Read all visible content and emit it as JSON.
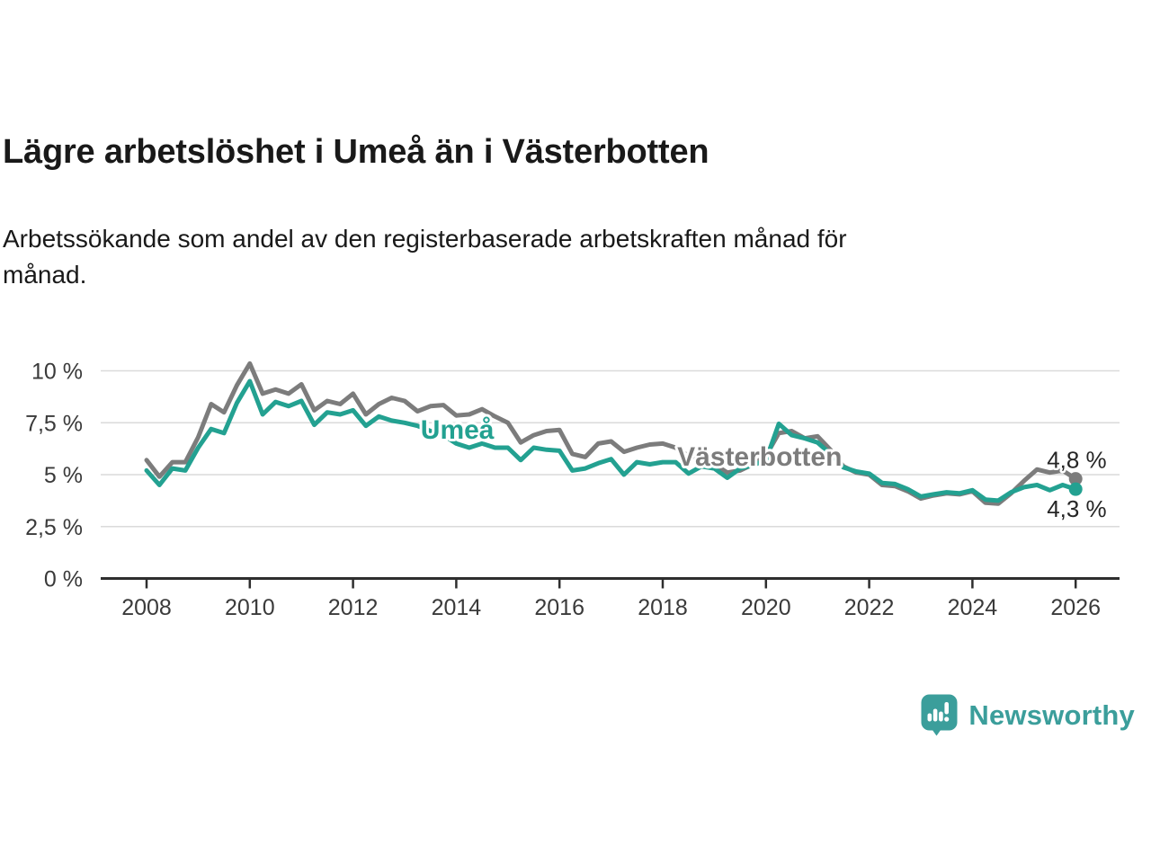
{
  "header": {
    "title": "Lägre arbetslöshet i Umeå än i Västerbotten",
    "subtitle_lines": [
      "Arbetssökande som andel av den registerbaserade arbetskraften månad för",
      "månad."
    ]
  },
  "footer": {
    "brand": "Newsworthy",
    "brand_color": "#3b9e9b",
    "logo_icon": "newsworthy-speech-bubble-bar-chart-icon"
  },
  "chart_data": {
    "type": "line",
    "title": "Lägre arbetslöshet i Umeå än i Västerbotten",
    "xlabel": "",
    "ylabel": "",
    "xlim": [
      2008,
      2026
    ],
    "ylim": [
      0,
      10.8
    ],
    "grid": true,
    "x_start": 2008,
    "x_step_years": 0.25,
    "axis_color": "#2e2e2e",
    "grid_color": "#dadada",
    "tick_label_color": "#3a3a3a",
    "value_label_color": "#252525",
    "x_ticks": [
      {
        "v": 2008,
        "label": "2008"
      },
      {
        "v": 2010,
        "label": "2010"
      },
      {
        "v": 2012,
        "label": "2012"
      },
      {
        "v": 2014,
        "label": "2014"
      },
      {
        "v": 2016,
        "label": "2016"
      },
      {
        "v": 2018,
        "label": "2018"
      },
      {
        "v": 2020,
        "label": "2020"
      },
      {
        "v": 2022,
        "label": "2022"
      },
      {
        "v": 2024,
        "label": "2024"
      },
      {
        "v": 2026,
        "label": "2026"
      }
    ],
    "y_ticks": [
      {
        "v": 0,
        "label": "0 %"
      },
      {
        "v": 2.5,
        "label": "2,5 %"
      },
      {
        "v": 5,
        "label": "5 %"
      },
      {
        "v": 7.5,
        "label": "7,5 %"
      },
      {
        "v": 10,
        "label": "10 %"
      }
    ],
    "series": [
      {
        "name": "Västerbotten",
        "color": "#7c7c7c",
        "end_label": "4,8 %",
        "end_label_position": "above",
        "label_anchor": {
          "x": 2018.28,
          "y": 5.43
        },
        "values": [
          5.7,
          4.9,
          5.6,
          5.6,
          6.8,
          8.4,
          8.0,
          9.3,
          10.35,
          8.9,
          9.1,
          8.9,
          9.35,
          8.1,
          8.55,
          8.4,
          8.9,
          7.9,
          8.4,
          8.7,
          8.55,
          8.05,
          8.3,
          8.35,
          7.85,
          7.9,
          8.15,
          7.8,
          7.5,
          6.55,
          6.9,
          7.1,
          7.15,
          6.0,
          5.85,
          6.5,
          6.6,
          6.1,
          6.3,
          6.45,
          6.5,
          6.3,
          5.9,
          5.8,
          5.5,
          5.1,
          5.2,
          5.5,
          5.9,
          7.0,
          7.1,
          6.75,
          6.85,
          6.2,
          5.4,
          5.1,
          5.0,
          4.5,
          4.45,
          4.2,
          3.85,
          4.0,
          4.1,
          4.05,
          4.2,
          3.65,
          3.6,
          4.1,
          4.7,
          5.25,
          5.1,
          5.2,
          4.8
        ]
      },
      {
        "name": "Umeå",
        "color": "#23a191",
        "end_label": "4,3 %",
        "end_label_position": "below",
        "label_anchor": {
          "x": 2013.31,
          "y": 6.73
        },
        "values": [
          5.2,
          4.5,
          5.3,
          5.2,
          6.3,
          7.2,
          7.0,
          8.45,
          9.5,
          7.9,
          8.5,
          8.3,
          8.55,
          7.4,
          8.0,
          7.9,
          8.1,
          7.35,
          7.8,
          7.6,
          7.5,
          7.35,
          7.1,
          6.9,
          6.5,
          6.3,
          6.5,
          6.3,
          6.3,
          5.7,
          6.3,
          6.2,
          6.15,
          5.2,
          5.3,
          5.55,
          5.75,
          5.0,
          5.6,
          5.5,
          5.6,
          5.6,
          5.05,
          5.4,
          5.3,
          4.85,
          5.3,
          5.45,
          5.7,
          7.45,
          6.9,
          6.75,
          6.55,
          6.0,
          5.35,
          5.15,
          5.05,
          4.6,
          4.55,
          4.3,
          3.95,
          4.05,
          4.15,
          4.1,
          4.25,
          3.8,
          3.75,
          4.15,
          4.4,
          4.5,
          4.25,
          4.5,
          4.3
        ]
      }
    ]
  }
}
